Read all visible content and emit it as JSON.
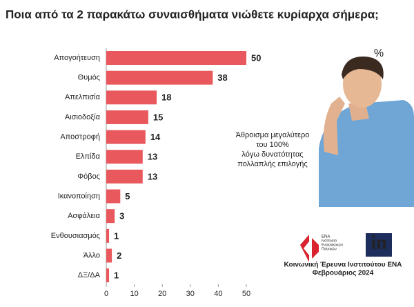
{
  "chart_data": {
    "type": "hbar",
    "title": "Ποια από τα 2 παρακάτω συναισθήματα νιώθετε κυρίαρχα σήμερα;",
    "categories": [
      "Απογοήτευση",
      "Θυμός",
      "Απελπισία",
      "Αισιοδοξία",
      "Αποστροφή",
      "Ελπίδα",
      "Φόβος",
      "Ικανοποίηση",
      "Ασφάλεια",
      "Ενθουσιασμός",
      "Άλλο",
      "ΔΞ/ΔΑ"
    ],
    "values": [
      50,
      38,
      18,
      15,
      14,
      13,
      13,
      5,
      3,
      1,
      2,
      1
    ],
    "color": "#e8585d",
    "xlim": [
      0,
      50
    ],
    "xticks": [
      0,
      10,
      20,
      30,
      40,
      50
    ],
    "unit_label": "%",
    "note_lines": [
      "Άθροισμα μεγαλύτερο",
      "του 100%",
      "λόγω δυνατότητας",
      "πολλαπλής επιλογής"
    ],
    "ena_logo_lines": [
      "ΕΝΑ",
      "Ινστιτούτο",
      "Εναλλακτικών",
      "Πολιτικών"
    ],
    "in_logo": "in",
    "source_lines": [
      "Κοινωνική Έρευνα Ινστιτούτου ΕΝΑ",
      "Φεβρουάριος 2024"
    ]
  }
}
